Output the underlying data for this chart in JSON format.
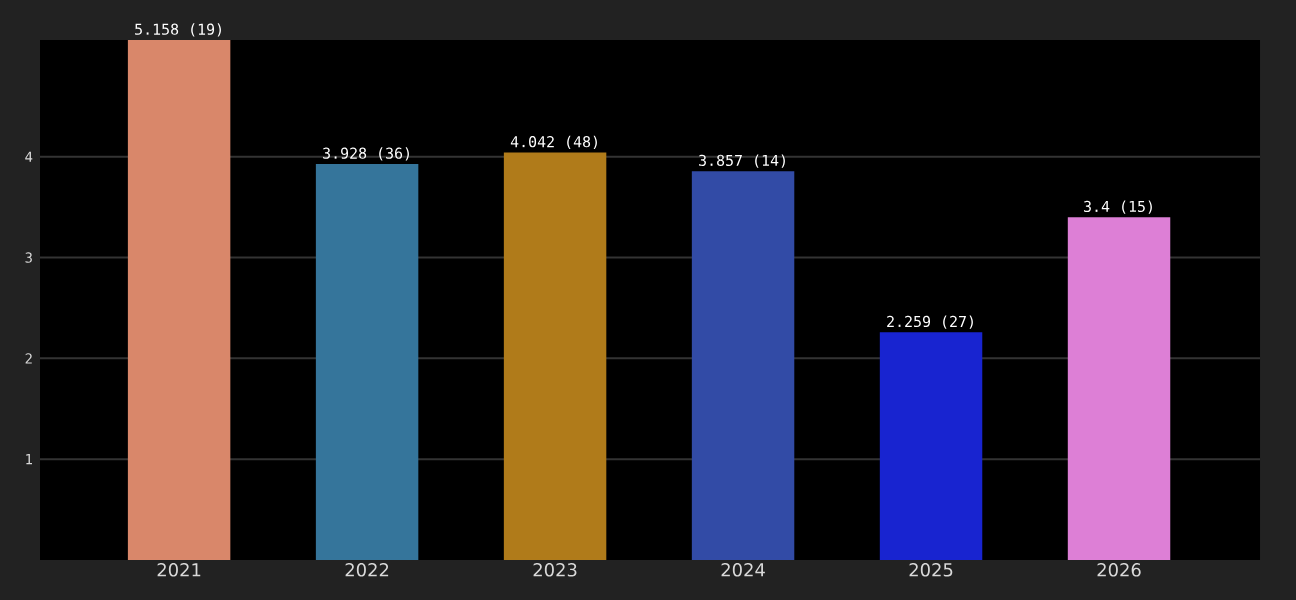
{
  "chart_data": {
    "type": "bar",
    "categories": [
      "2021",
      "2022",
      "2023",
      "2024",
      "2025",
      "2026"
    ],
    "values": [
      5.158,
      3.928,
      4.042,
      3.857,
      2.259,
      3.4
    ],
    "value_labels": [
      "5.158 (19)",
      "3.928 (36)",
      "4.042 (48)",
      "3.857 (14)",
      "2.259 (27)",
      "3.4 (15)"
    ],
    "colors": [
      "#d9876a",
      "#35759b",
      "#b07b1a",
      "#324ba6",
      "#1824d0",
      "#dd7fd6"
    ],
    "ylim": [
      0,
      5.158
    ],
    "yticks": [
      1,
      2,
      3,
      4
    ],
    "grid": "y"
  }
}
